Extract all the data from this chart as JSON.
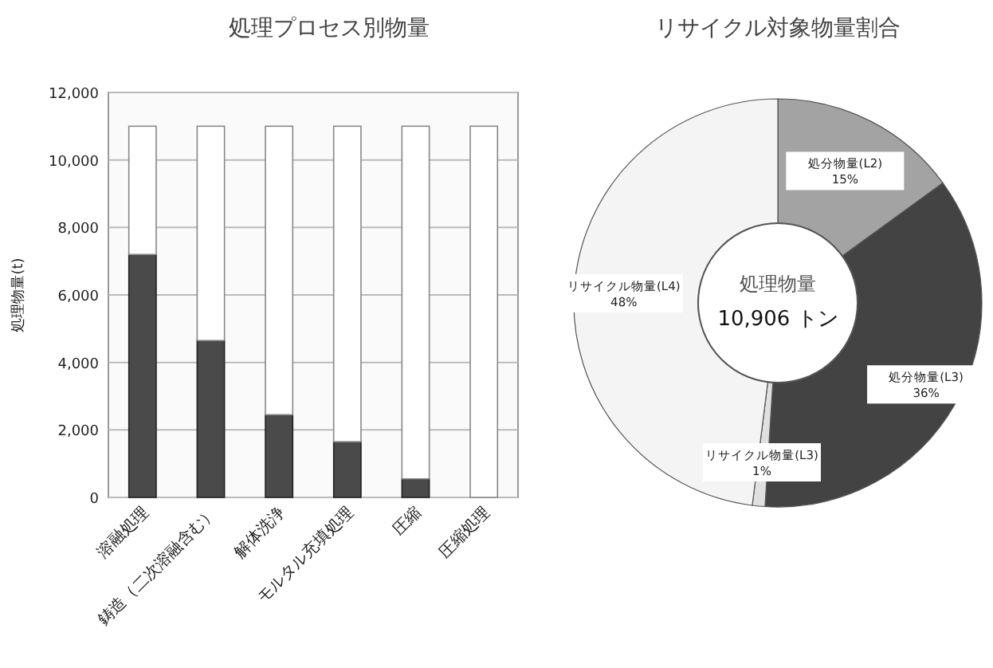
{
  "chart_data": [
    {
      "type": "bar",
      "title": "処理プロセス別物量",
      "ylabel": "処理物量(t)",
      "categories": [
        "溶融処理",
        "鋳造（二次溶融含む）",
        "解体洗浄",
        "モルタル充填処理",
        "圧縮",
        "圧縮処理"
      ],
      "stacked": true,
      "series": [
        {
          "color": "#4a4a4a",
          "values": [
            7200,
            4650,
            2450,
            1650,
            550,
            0
          ]
        },
        {
          "color": "#ffffff",
          "values": [
            3800,
            6350,
            8550,
            9350,
            10450,
            11000
          ]
        }
      ],
      "ylim": [
        0,
        12000
      ],
      "yticks": [
        {
          "value": 0,
          "label": "0"
        },
        {
          "value": 2000,
          "label": "2,000"
        },
        {
          "value": 4000,
          "label": "4,000"
        },
        {
          "value": 6000,
          "label": "6,000"
        },
        {
          "value": 8000,
          "label": "8,000"
        },
        {
          "value": 10000,
          "label": "10,000"
        },
        {
          "value": 12000,
          "label": "12,000"
        }
      ],
      "grid": "y"
    },
    {
      "type": "donut",
      "title": "リサイクル対象物量割合",
      "categories": [
        "処分物量(L2)",
        "処分物量(L3)",
        "リサイクル物量(L3)",
        "リサイクル物量(L4)"
      ],
      "values": [
        15,
        36,
        1,
        48
      ],
      "colors": [
        "#a3a3a3",
        "#434343",
        "#e0e0e0",
        "#f4f4f4"
      ],
      "value_labels": [
        "15%",
        "36%",
        "1%",
        "48%"
      ],
      "annotations": [
        "処理物量",
        "10,906 トン"
      ]
    }
  ]
}
